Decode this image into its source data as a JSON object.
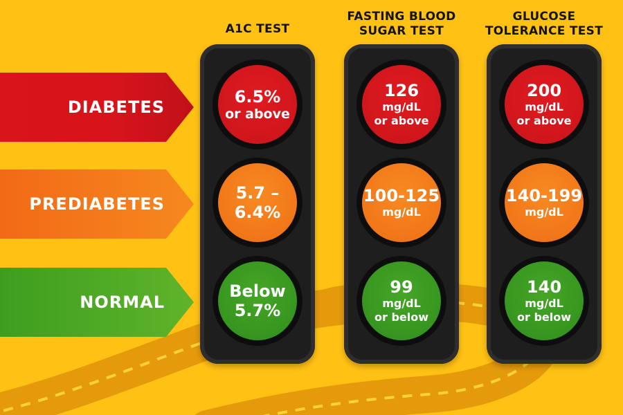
{
  "colors": {
    "background": "#FFC114",
    "red": "#D7141B",
    "orange": "#F6881F",
    "green": "#3D9E1E",
    "housing": "#1E1E1E"
  },
  "categories": [
    {
      "label": "DIABETES",
      "color": "red"
    },
    {
      "label": "PREDIABETES",
      "color": "orange"
    },
    {
      "label": "NORMAL",
      "color": "green"
    }
  ],
  "tests": [
    {
      "title_line1": "A1C TEST",
      "title_line2": "",
      "diabetes": {
        "line1": "6.5%",
        "line2": "or above",
        "line3": ""
      },
      "prediabetes": {
        "line1": "5.7 –",
        "line2": "6.4%"
      },
      "normal": {
        "line1": "Below",
        "line2": "5.7%",
        "line3": ""
      }
    },
    {
      "title_line1": "FASTING BLOOD",
      "title_line2": "SUGAR TEST",
      "diabetes": {
        "line1": "126",
        "line2": "mg/dL",
        "line3": "or above"
      },
      "prediabetes": {
        "line1": "100-125",
        "line2": "mg/dL"
      },
      "normal": {
        "line1": "99",
        "line2": "mg/dL",
        "line3": "or below"
      }
    },
    {
      "title_line1": "GLUCOSE",
      "title_line2": "TOLERANCE TEST",
      "diabetes": {
        "line1": "200",
        "line2": "mg/dL",
        "line3": "or above"
      },
      "prediabetes": {
        "line1": "140-199",
        "line2": "mg/dL"
      },
      "normal": {
        "line1": "140",
        "line2": "mg/dL",
        "line3": "or below"
      }
    }
  ]
}
